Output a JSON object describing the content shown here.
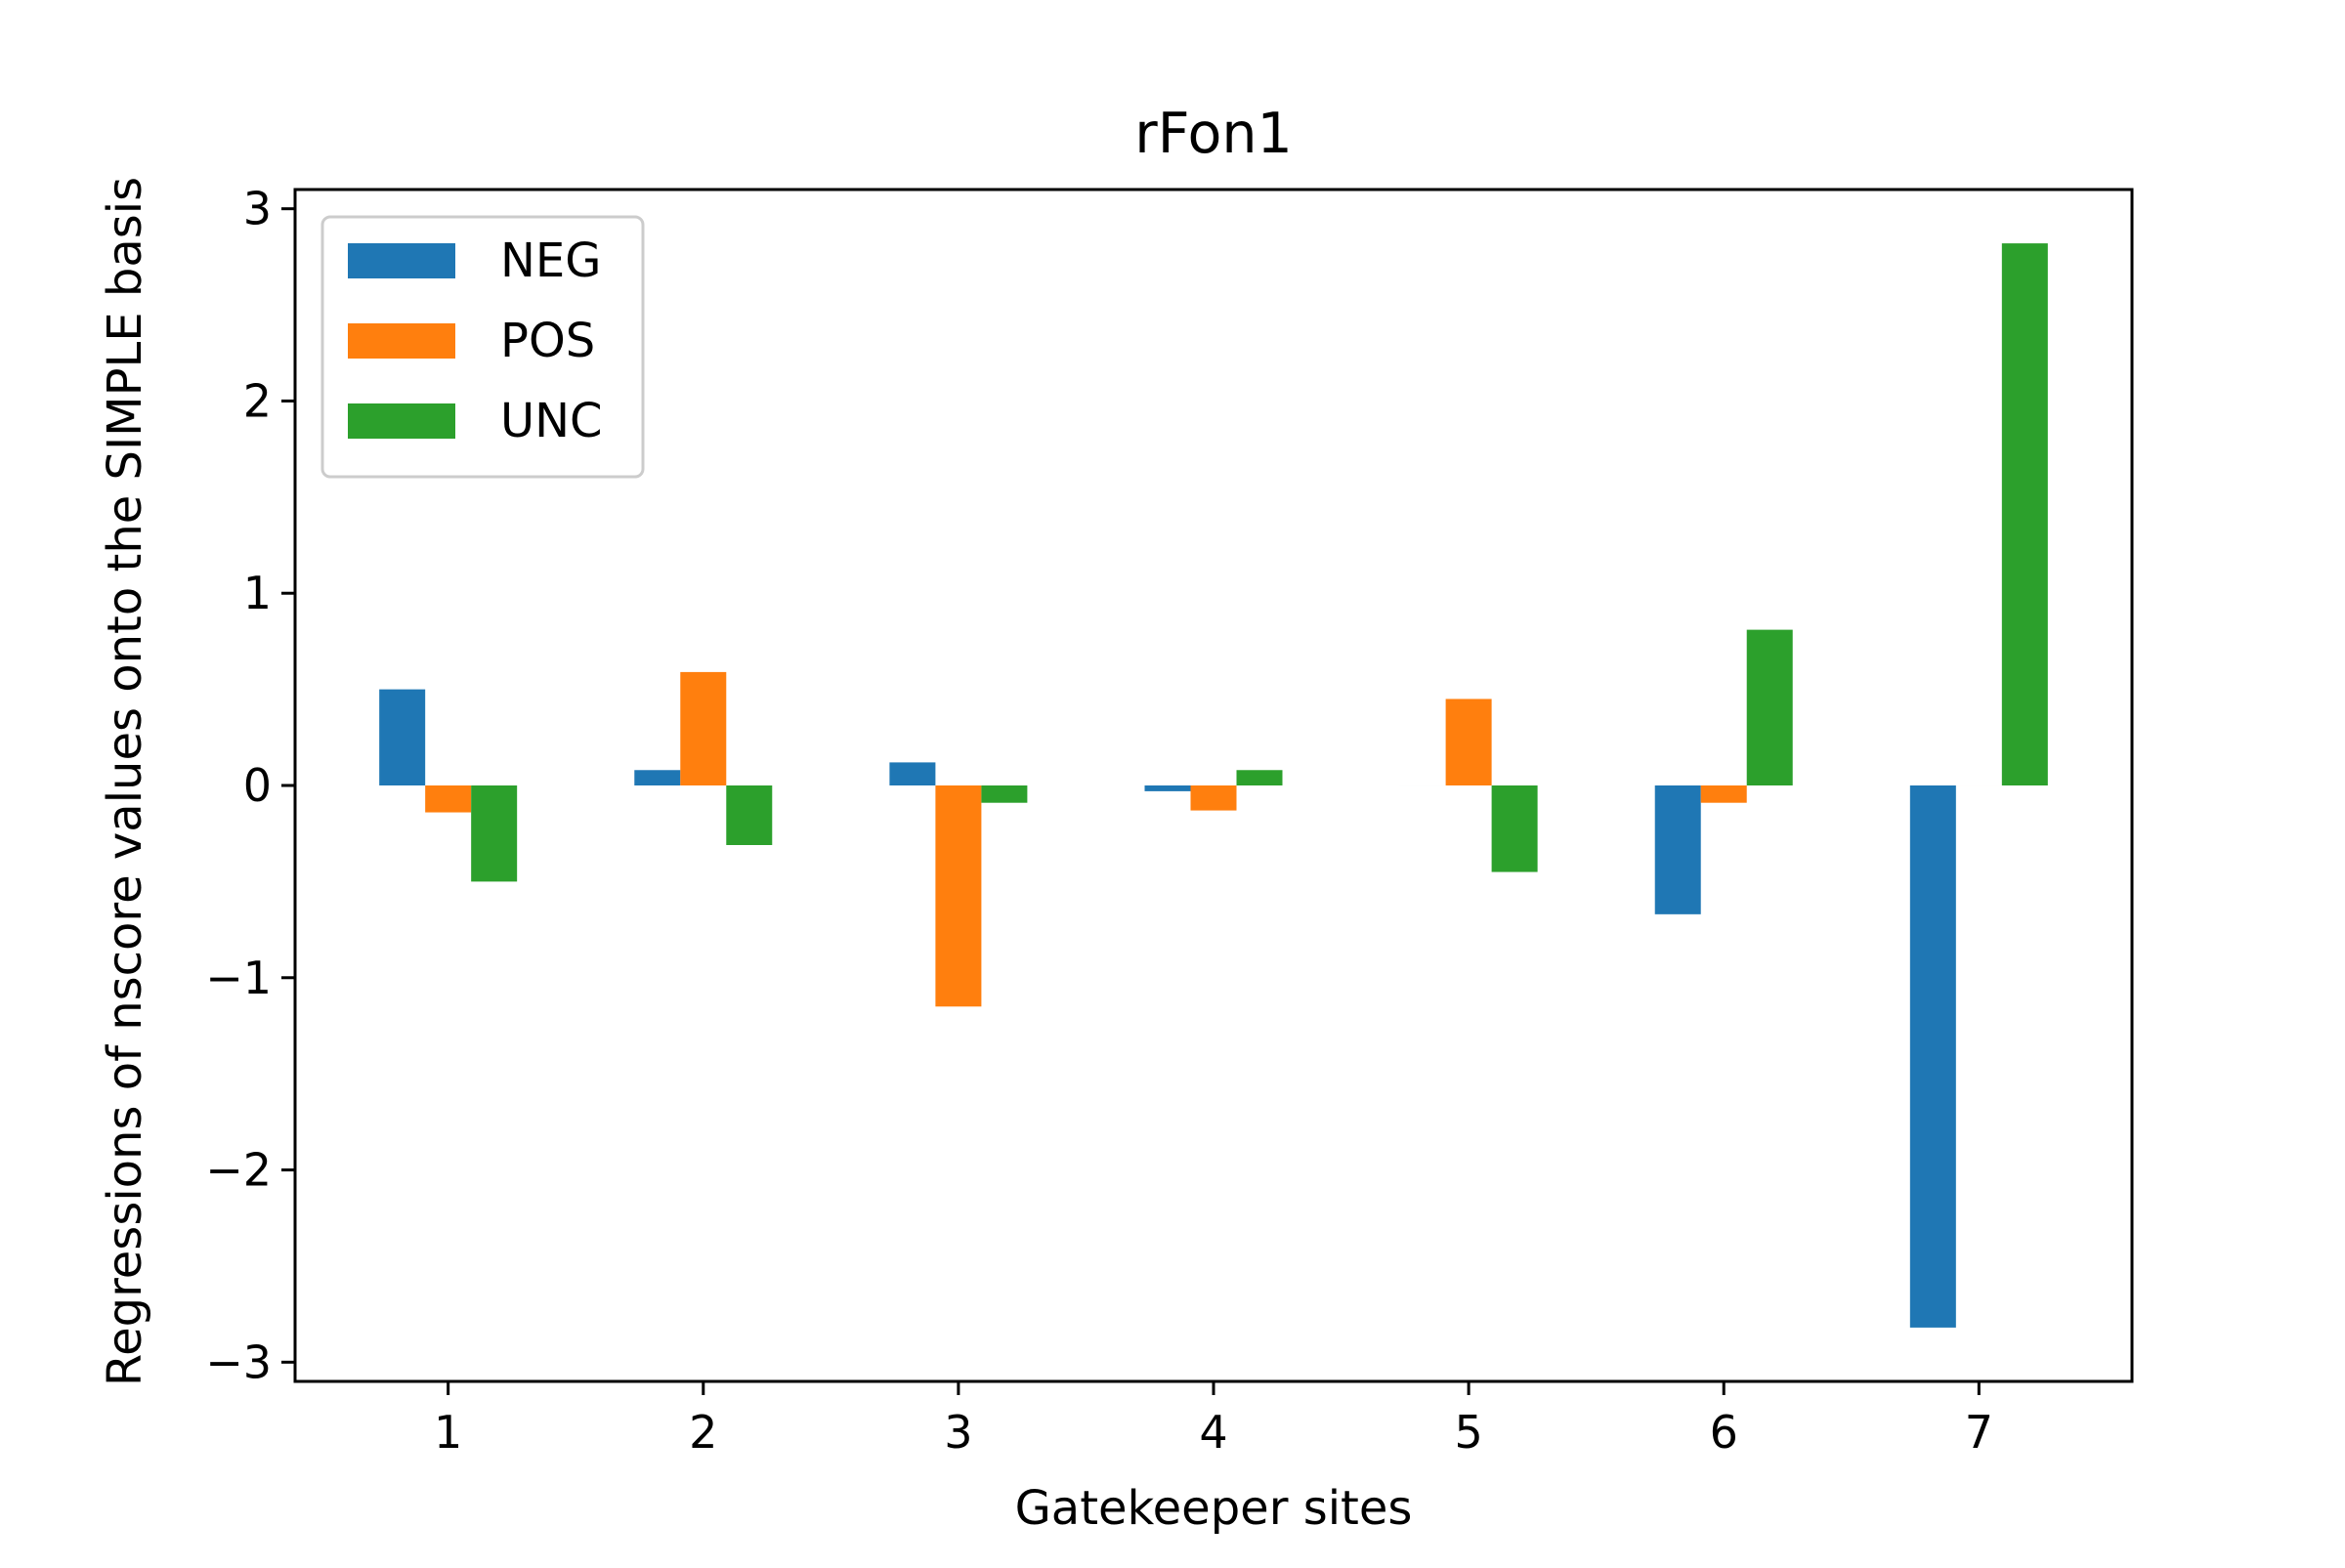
{
  "chart_data": {
    "type": "bar",
    "title": "rFon1",
    "xlabel": "Gatekeeper sites",
    "ylabel": "Regressions of nscore values onto the SIMPLE basis",
    "categories": [
      "1",
      "2",
      "3",
      "4",
      "5",
      "6",
      "7"
    ],
    "ylim": [
      -3.1,
      3.1
    ],
    "yticks": [
      -3,
      -2,
      -1,
      0,
      1,
      2,
      3
    ],
    "ytick_labels": [
      "−3",
      "−2",
      "−1",
      "0",
      "1",
      "2",
      "3"
    ],
    "grid": false,
    "legend_position": "top-left",
    "series": [
      {
        "name": "NEG",
        "color": "#1f77b4",
        "values": [
          0.5,
          0.08,
          0.12,
          -0.03,
          0.0,
          -0.67,
          -2.82
        ]
      },
      {
        "name": "POS",
        "color": "#ff7f0e",
        "values": [
          -0.14,
          0.59,
          -1.15,
          -0.13,
          0.45,
          -0.09,
          0.0
        ]
      },
      {
        "name": "UNC",
        "color": "#2ca02c",
        "values": [
          -0.5,
          -0.31,
          -0.09,
          0.08,
          -0.45,
          0.81,
          2.82
        ]
      }
    ]
  }
}
